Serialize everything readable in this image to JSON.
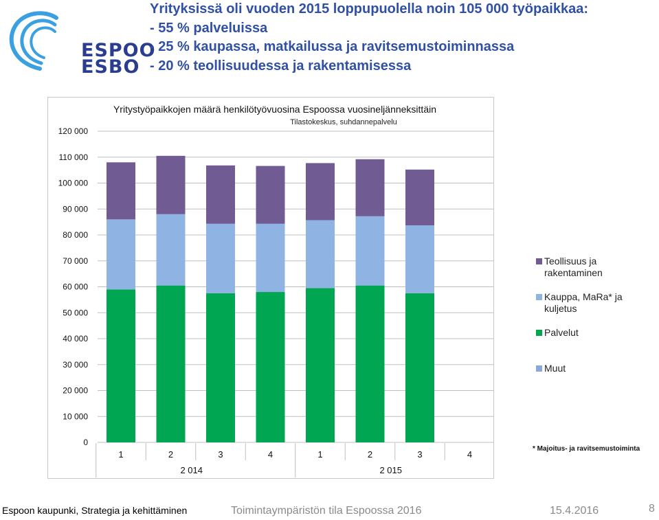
{
  "logo": {
    "line1": "ESPOO",
    "line2": "ESBO",
    "color": "#2a3d8f",
    "accent": "#3aa0e0"
  },
  "headline": {
    "lines": [
      "Yrityksissä oli vuoden 2015 loppupuolella noin 105 000 työpaikkaa:",
      "- 55 % palveluissa",
      "- 25 % kaupassa, matkailussa ja ravitsemustoiminnassa",
      "- 20 % teollisuudessa ja  rakentamisessa"
    ],
    "color": "#3050a6"
  },
  "chart_data": {
    "type": "bar",
    "stacked": true,
    "title": "Yritystyöpaikkojen määrä henkilötyövuosina Espoossa vuosineljänneksittäin",
    "subtitle": "Tilastokeskus, suhdannepalvelu",
    "categories": [
      "1",
      "2",
      "3",
      "4",
      "1",
      "2",
      "3",
      "4"
    ],
    "groups": [
      {
        "label": "2 014",
        "span": 4
      },
      {
        "label": "2 015",
        "span": 4
      }
    ],
    "ylim": [
      0,
      120000
    ],
    "yticks": [
      0,
      10000,
      20000,
      30000,
      40000,
      50000,
      60000,
      70000,
      80000,
      90000,
      100000,
      110000,
      120000
    ],
    "ytick_labels": [
      "0",
      "10 000",
      "20 000",
      "30 000",
      "40 000",
      "50 000",
      "60 000",
      "70 000",
      "80 000",
      "90 000",
      "100 000",
      "110 000",
      "120 000"
    ],
    "grid": true,
    "legend_position": "right",
    "series": [
      {
        "name": "Muut",
        "color": "#8aa8d6",
        "values": [
          0,
          0,
          0,
          0,
          0,
          0,
          0,
          null
        ]
      },
      {
        "name": "Palvelut",
        "color": "#00a651",
        "values": [
          59000,
          60500,
          57500,
          58000,
          59500,
          60500,
          57500,
          null
        ]
      },
      {
        "name": "Kauppa, MaRa* ja kuljetus",
        "color": "#8fb4e3",
        "values": [
          27000,
          27500,
          26800,
          26300,
          26200,
          26700,
          26200,
          null
        ]
      },
      {
        "name": "Teollisuus ja rakentaminen",
        "color": "#705b92",
        "values": [
          22000,
          22500,
          22500,
          22300,
          22000,
          22000,
          21500,
          null
        ]
      }
    ],
    "legend_order": [
      "Teollisuus ja rakentaminen",
      "Kauppa, MaRa* ja kuljetus",
      "Palvelut",
      "Muut"
    ],
    "footnote": "* Majoitus- ja ravitsemustoiminta"
  },
  "footer": {
    "left": "Espoon kaupunki, Strategia ja kehittäminen",
    "center": "Toimintaympäristön tila Espoossa 2016",
    "date": "15.4.2016",
    "page": "8"
  }
}
